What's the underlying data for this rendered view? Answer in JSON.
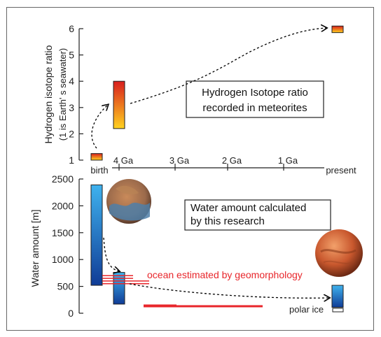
{
  "chart_data": [
    {
      "type": "bar",
      "ylabel_line1": "Hydrogen isotope ratio",
      "ylabel_line2": "(1 is Earth' s seawater)",
      "ylim": [
        1,
        6
      ],
      "yticks": [
        "1",
        "2",
        "3",
        "4",
        "5",
        "6"
      ],
      "time_labels": [
        "birth",
        "4 Ga",
        "3 Ga",
        "2 Ga",
        "1 Ga",
        "present"
      ],
      "annotation_line1": "Hydrogen Isotope ratio",
      "annotation_line2": "recorded in meteorites",
      "bars": [
        {
          "time": "birth",
          "low": 1.0,
          "high": 1.25
        },
        {
          "time": "4 Ga",
          "low": 2.2,
          "high": 4.0
        },
        {
          "time": "present",
          "low": 5.85,
          "high": 6.1
        }
      ],
      "gradient_colors": [
        "#ffd21f",
        "#d81e1e"
      ]
    },
    {
      "type": "bar",
      "ylabel": "Water amount [m]",
      "ylim": [
        0,
        2500
      ],
      "yticks": [
        "0",
        "500",
        "1000",
        "1500",
        "2000",
        "2500"
      ],
      "annotation_line1": "Water amount calculated",
      "annotation_line2": "by this research",
      "bars": [
        {
          "time": "birth",
          "low": 520,
          "high": 2390
        },
        {
          "time": "4 Ga",
          "low": 170,
          "high": 760
        },
        {
          "time": "present",
          "low": 110,
          "high": 520
        }
      ],
      "gradient_colors": [
        "#3fb2ee",
        "#103c96"
      ],
      "ocean_label": "ocean estimated by geomorphology",
      "ocean_color": "#e8262b",
      "polar_label": "polar ice",
      "ocean_lines": [
        {
          "kind": "early_ocean",
          "values": [
            550,
            600,
            650,
            700
          ]
        },
        {
          "kind": "late_ocean",
          "values": [
            130,
            150
          ]
        }
      ]
    }
  ]
}
